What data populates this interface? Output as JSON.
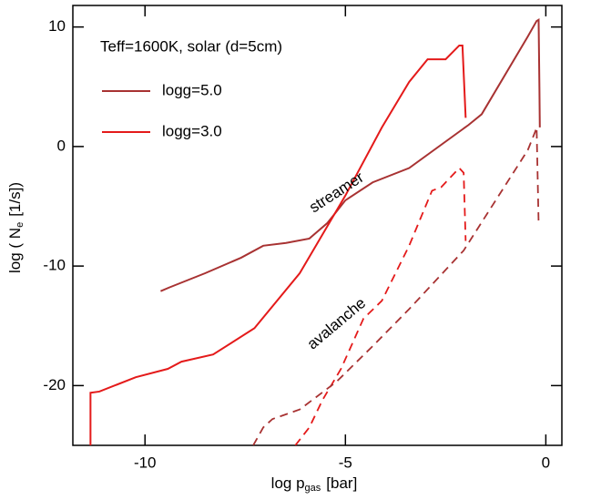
{
  "chart_data": {
    "type": "line",
    "title": "Teff=1600K, solar (d=5cm)",
    "xlabel": {
      "main": "log p",
      "sub": "gas",
      "rest": "[bar]"
    },
    "ylabel": {
      "main": "log ( N",
      "sub": "e",
      "rest": "[1/s])"
    },
    "xlim": [
      -11.8,
      0.4
    ],
    "ylim": [
      -25,
      11.8
    ],
    "xticks": [
      -10,
      -5,
      0
    ],
    "yticks": [
      -20,
      -10,
      0,
      10
    ],
    "annotations": [
      "streamer",
      "avalanche"
    ],
    "series": [
      {
        "name": "logg=5.0",
        "color": "#a83232",
        "dashed": false,
        "x": [
          -9.61,
          -9.4,
          -8.5,
          -7.6,
          -7.05,
          -6.48,
          -5.9,
          -5.45,
          -5.0,
          -4.32,
          -3.41,
          -1.93,
          -1.6,
          -0.45,
          -0.23,
          -0.18,
          -0.16,
          -0.15
        ],
        "values": [
          -12.1,
          -11.8,
          -10.6,
          -9.3,
          -8.3,
          -8.07,
          -7.7,
          -6.4,
          -4.5,
          -3.0,
          -1.8,
          1.8,
          2.7,
          9.2,
          10.5,
          10.6,
          5.0,
          1.6
        ]
      },
      {
        "name": "logg=3.0",
        "color": "#e41a1a",
        "dashed": false,
        "x": [
          -11.36,
          -11.36,
          -11.14,
          -10.23,
          -9.43,
          -9.09,
          -8.3,
          -7.27,
          -6.14,
          -5.0,
          -4.09,
          -3.41,
          -2.95,
          -2.5,
          -2.16,
          -2.08,
          -2.0
        ],
        "values": [
          -25,
          -20.6,
          -20.5,
          -19.3,
          -18.6,
          -18.0,
          -17.4,
          -15.2,
          -10.6,
          -4.1,
          1.6,
          5.4,
          7.3,
          7.3,
          8.45,
          8.45,
          2.4
        ]
      },
      {
        "color": "#e41a1a",
        "dashed": true,
        "x": [
          -6.25,
          -5.9,
          -5.57,
          -5.11,
          -4.55,
          -4.09,
          -3.41,
          -2.84,
          -2.61,
          -2.16,
          -2.05,
          -2.0
        ],
        "values": [
          -25,
          -23.5,
          -21.2,
          -18.6,
          -14.4,
          -12.9,
          -8.3,
          -3.7,
          -3.4,
          -1.8,
          -2.2,
          -7.9
        ]
      },
      {
        "color": "#a83232",
        "dashed": true,
        "x": [
          -7.3,
          -7.05,
          -6.82,
          -6.14,
          -5.23,
          -4.32,
          -3.41,
          -2.05,
          -0.45,
          -0.27,
          -0.23,
          -0.18
        ],
        "values": [
          -25,
          -23.5,
          -22.8,
          -22.0,
          -19.7,
          -16.7,
          -13.6,
          -8.7,
          -0.3,
          1.2,
          1.6,
          -6.4
        ]
      }
    ]
  }
}
